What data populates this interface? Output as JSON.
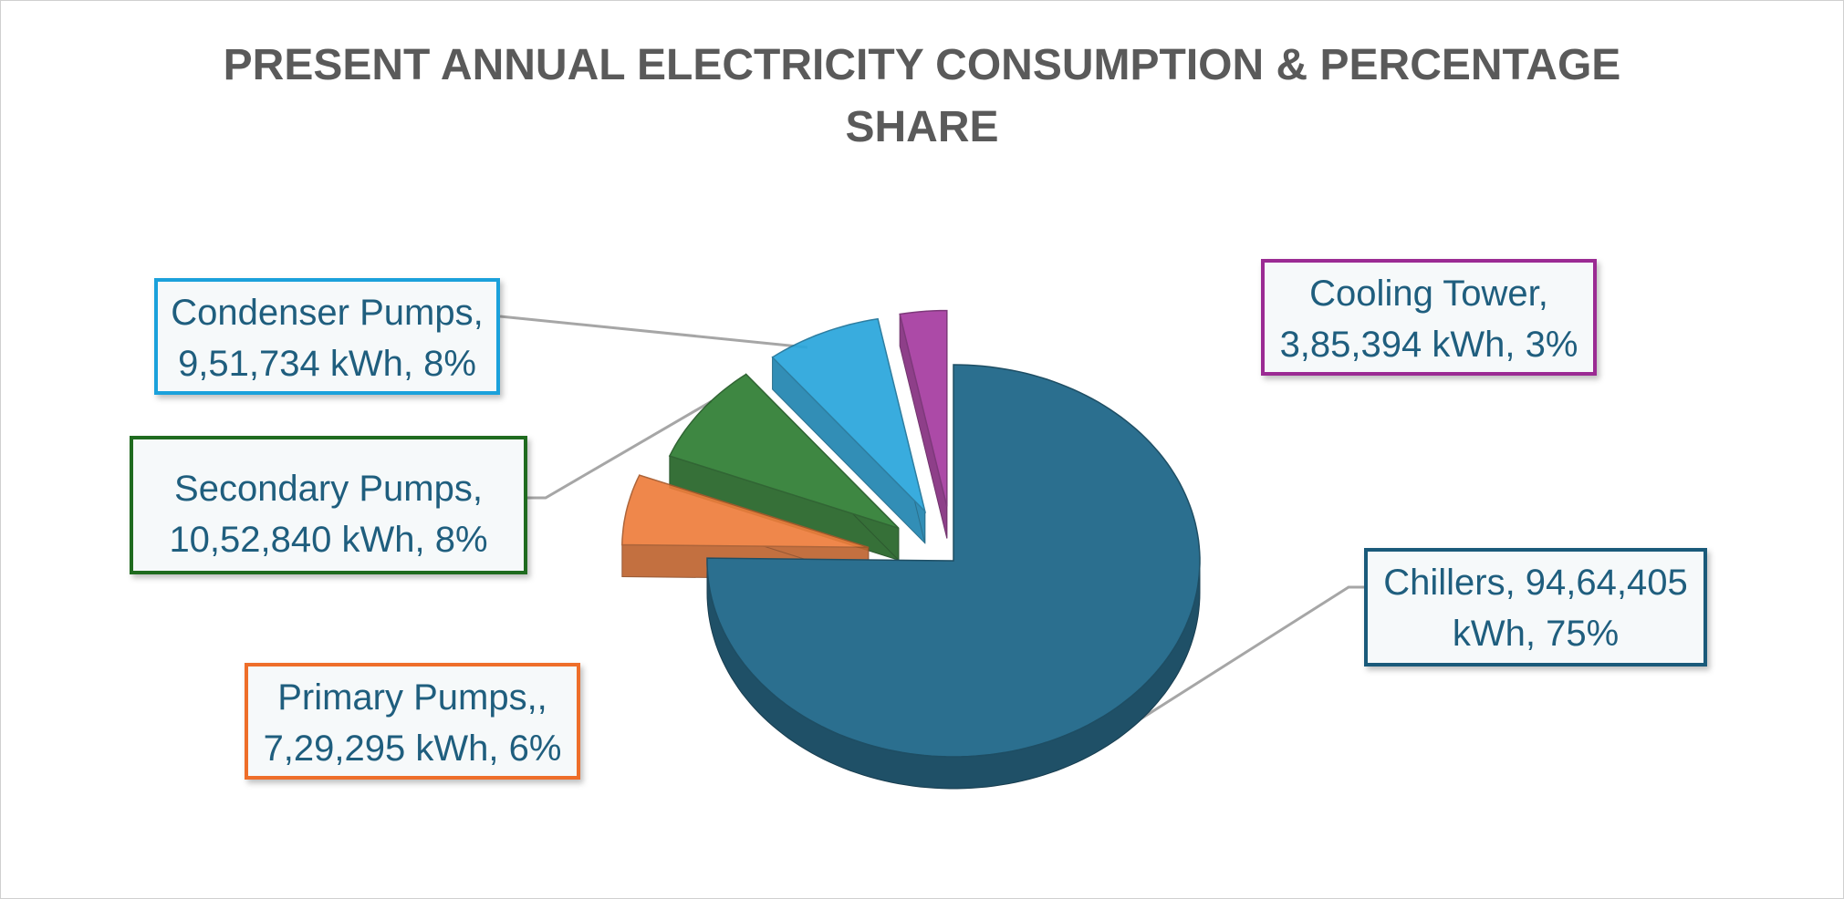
{
  "chart_data": {
    "type": "pie",
    "title_line1": "PRESENT ANNUAL ELECTRICITY CONSUMPTION & PERCENTAGE",
    "title_line2": "SHARE",
    "slices": [
      {
        "key": "chillers",
        "label_line1": "Chillers, 94,64,405",
        "label_line2": "kWh, 75%",
        "value_kwh": 9464405,
        "percent": 75,
        "color": "#2b6f8f"
      },
      {
        "key": "primary",
        "label_line1": "Primary Pumps,,",
        "label_line2": "7,29,295 kWh, 6%",
        "value_kwh": 729295,
        "percent": 6,
        "color": "#ee7d3c"
      },
      {
        "key": "secondary",
        "label_line1": "Secondary Pumps,",
        "label_line2": "10,52,840 kWh, 8%",
        "value_kwh": 1052840,
        "percent": 8,
        "color": "#2e7d32"
      },
      {
        "key": "condenser",
        "label_line1": "Condenser Pumps,",
        "label_line2": "9,51,734 kWh, 8%",
        "value_kwh": 951734,
        "percent": 8,
        "color": "#29a6dc"
      },
      {
        "key": "cooling",
        "label_line1": "Cooling Tower,",
        "label_line2": "3,85,394 kWh, 3%",
        "value_kwh": 385394,
        "percent": 3,
        "color": "#a63ba0"
      }
    ],
    "legend": "none",
    "style": "3d exploded pie"
  }
}
